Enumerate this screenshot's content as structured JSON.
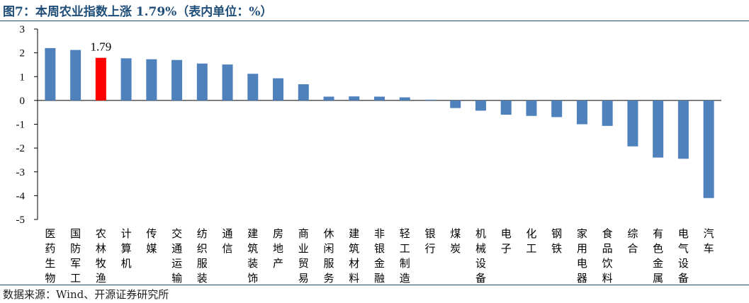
{
  "title": "图7：本周农业指数上涨 1.79%（表内单位：%）",
  "source": "数据来源：Wind、开源证券研究所",
  "chart_data": {
    "type": "bar",
    "categories": [
      "医药生物",
      "国防军工",
      "农林牧渔",
      "计算机",
      "传媒",
      "交通运输",
      "纺织服装",
      "通信",
      "建筑装饰",
      "房地产",
      "商业贸易",
      "休闲服务",
      "建筑材料",
      "非银金融",
      "轻工制造",
      "银行",
      "煤炭",
      "机械设备",
      "电子",
      "化工",
      "钢铁",
      "家用电器",
      "食品饮料",
      "综合",
      "有色金属",
      "电气设备",
      "汽车"
    ],
    "values": [
      2.2,
      2.12,
      1.79,
      1.77,
      1.73,
      1.7,
      1.55,
      1.51,
      1.12,
      0.93,
      0.68,
      0.16,
      0.17,
      0.16,
      0.13,
      0.03,
      -0.32,
      -0.43,
      -0.6,
      -0.65,
      -0.7,
      -1.0,
      -1.07,
      -1.93,
      -2.4,
      -2.45,
      -4.1
    ],
    "highlight_index": 2,
    "data_labels": [
      {
        "index": 2,
        "text": "1.79"
      }
    ],
    "yticks": [
      "3",
      "2",
      "1",
      "0",
      "-1",
      "-2",
      "-3",
      "-4",
      "-5"
    ],
    "ylim": [
      -5,
      3
    ],
    "bar_color": "#4F81BD",
    "highlight_color": "#FF0000"
  }
}
